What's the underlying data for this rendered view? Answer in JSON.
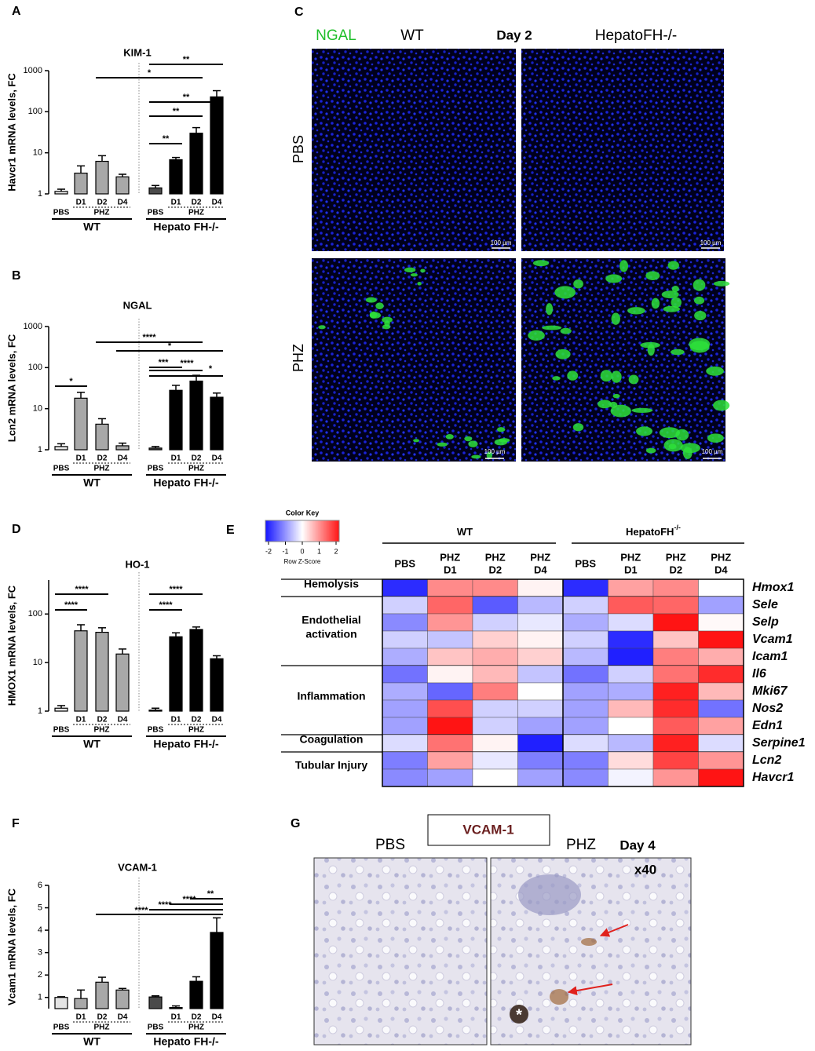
{
  "chart_data": [
    {
      "panel": "A",
      "type": "bar",
      "title": "KIM-1",
      "y_label": "Havcr1 mRNA levels, FC",
      "log_y": true,
      "ylim": [
        1,
        1000
      ],
      "yticks": [
        1,
        10,
        100,
        1000
      ],
      "categories": [
        "PBS",
        "D1",
        "D2",
        "D4",
        "PBS",
        "D1",
        "D2",
        "D4"
      ],
      "subgroup_labels": [
        "PHZ",
        "PHZ"
      ],
      "groups": [
        "WT",
        "Hepato FH-/-"
      ],
      "values": [
        1.15,
        3.2,
        6.2,
        2.6,
        1.4,
        6.8,
        30,
        230
      ],
      "errors": [
        0.15,
        1.6,
        2.3,
        0.4,
        0.2,
        0.9,
        11,
        95
      ],
      "colors": [
        "#e4e4e4",
        "#a8a8a8",
        "#a8a8a8",
        "#a8a8a8",
        "#4a4a4a",
        "#000000",
        "#000000",
        "#000000"
      ],
      "significance": [
        "**",
        "*",
        "**",
        "**",
        "**"
      ]
    },
    {
      "panel": "B",
      "type": "bar",
      "title": "NGAL",
      "y_label": "Lcn2 mRNA levels, FC",
      "log_y": true,
      "ylim": [
        1,
        1000
      ],
      "yticks": [
        1,
        10,
        100,
        1000
      ],
      "categories": [
        "PBS",
        "D1",
        "D2",
        "D4",
        "PBS",
        "D1",
        "D2",
        "D4"
      ],
      "subgroup_labels": [
        "PHZ",
        "PHZ"
      ],
      "groups": [
        "WT",
        "Hepato FH-/-"
      ],
      "values": [
        1.2,
        18,
        4.2,
        1.25,
        1.1,
        28,
        47,
        19
      ],
      "errors": [
        0.2,
        7,
        1.5,
        0.2,
        0.1,
        9,
        18,
        5
      ],
      "colors": [
        "#e4e4e4",
        "#a8a8a8",
        "#a8a8a8",
        "#a8a8a8",
        "#4a4a4a",
        "#000000",
        "#000000",
        "#000000"
      ],
      "significance": [
        "*",
        "****",
        "*",
        "***",
        "****",
        "*"
      ]
    },
    {
      "panel": "D",
      "type": "bar",
      "title": "HO-1",
      "y_label": "HMOX1 mRNA levels, FC",
      "log_y": true,
      "ylim": [
        1,
        500
      ],
      "yticks": [
        1,
        10,
        100
      ],
      "categories": [
        "PBS",
        "D1",
        "D2",
        "D4",
        "PBS",
        "D1",
        "D2",
        "D4"
      ],
      "subgroup_labels": [
        "PHZ",
        "PHZ"
      ],
      "groups": [
        "WT",
        "Hepato FH-/-"
      ],
      "values": [
        1.15,
        45,
        42,
        15,
        1.05,
        34,
        48,
        12
      ],
      "errors": [
        0.15,
        15,
        10,
        4,
        0.1,
        7,
        6,
        1.8
      ],
      "colors": [
        "#e4e4e4",
        "#a8a8a8",
        "#a8a8a8",
        "#a8a8a8",
        "#4a4a4a",
        "#000000",
        "#000000",
        "#000000"
      ],
      "significance": [
        "****",
        "****",
        "****",
        "****"
      ]
    },
    {
      "panel": "F",
      "type": "bar",
      "title": "VCAM-1",
      "y_label": "Vcam1 mRNA levels, FC",
      "log_y": false,
      "ylim": [
        0.5,
        6
      ],
      "yticks": [
        1,
        2,
        3,
        4,
        5,
        6
      ],
      "categories": [
        "PBS",
        "D1",
        "D2",
        "D4",
        "PBS",
        "D1",
        "D2",
        "D4"
      ],
      "subgroup_labels": [
        "PHZ",
        "PHZ"
      ],
      "groups": [
        "WT",
        "Hepato FH-/-"
      ],
      "values": [
        1.0,
        0.95,
        1.68,
        1.33,
        1.02,
        0.55,
        1.72,
        3.9
      ],
      "errors": [
        0.03,
        0.38,
        0.22,
        0.07,
        0.05,
        0.07,
        0.2,
        0.65
      ],
      "colors": [
        "#e4e4e4",
        "#a8a8a8",
        "#a8a8a8",
        "#a8a8a8",
        "#4a4a4a",
        "#000000",
        "#000000",
        "#000000"
      ],
      "significance": [
        "****",
        "****",
        "****",
        "**"
      ]
    },
    {
      "panel": "E",
      "type": "heatmap",
      "color_key_title": "Color Key",
      "color_key_label": "Row Z-Score",
      "zlim": [
        -2,
        2
      ],
      "zticks": [
        -2,
        -1,
        0,
        1,
        2
      ],
      "colormap": [
        "#1414ff",
        "#ffffff",
        "#ff1414"
      ],
      "groups": [
        {
          "name": "WT"
        },
        {
          "name": "HepatoFH",
          "sup": "-/-"
        }
      ],
      "columns": [
        [
          "PBS"
        ],
        [
          "PHZ",
          "D1"
        ],
        [
          "PHZ",
          "D2"
        ],
        [
          "PHZ",
          "D4"
        ],
        [
          "PBS"
        ],
        [
          "PHZ",
          "D1"
        ],
        [
          "PHZ",
          "D2"
        ],
        [
          "PHZ",
          "D4"
        ]
      ],
      "row_groups": [
        {
          "label": [
            "Hemolysis"
          ],
          "genes": [
            "Hmox1"
          ],
          "values": [
            [
              -1.8,
              1.0,
              1.0,
              0.1,
              -1.8,
              0.8,
              1.0,
              0.0
            ]
          ]
        },
        {
          "label": [
            "Endothelial",
            "activation"
          ],
          "genes": [
            "Sele",
            "Selp",
            "Vcam1",
            "Icam1"
          ],
          "values": [
            [
              -0.4,
              1.3,
              -1.4,
              -0.6,
              -0.4,
              1.4,
              1.3,
              -0.8
            ],
            [
              -1.0,
              0.9,
              -0.4,
              -0.2,
              -0.7,
              -0.3,
              2.0,
              0.05
            ],
            [
              -0.4,
              -0.5,
              0.4,
              0.1,
              -0.4,
              -1.8,
              0.5,
              2.0
            ],
            [
              -0.7,
              0.5,
              0.7,
              0.4,
              -0.6,
              -1.9,
              1.1,
              0.7
            ]
          ]
        },
        {
          "label": [
            "Inflammation"
          ],
          "genes": [
            "Il6",
            "Mki67",
            "Nos2",
            "Edn1"
          ],
          "values": [
            [
              -1.2,
              0.1,
              0.6,
              -0.5,
              -1.2,
              -0.4,
              1.2,
              1.8
            ],
            [
              -0.7,
              -1.3,
              1.1,
              0.0,
              -0.8,
              -0.7,
              1.9,
              0.6
            ],
            [
              -0.8,
              1.5,
              -0.4,
              -0.4,
              -0.8,
              0.6,
              1.8,
              -1.2
            ],
            [
              -0.8,
              2.0,
              -0.4,
              -0.8,
              -0.8,
              0.0,
              1.4,
              0.8
            ]
          ]
        },
        {
          "label": [
            "Coagulation"
          ],
          "genes": [
            "Serpine1"
          ],
          "values": [
            [
              -0.3,
              1.2,
              0.1,
              -1.9,
              -0.3,
              -0.6,
              1.9,
              -0.3
            ]
          ]
        },
        {
          "label": [
            "Tubular Injury"
          ],
          "genes": [
            "Lcn2",
            "Havcr1"
          ],
          "values": [
            [
              -1.1,
              0.8,
              -0.2,
              -1.1,
              -1.1,
              0.3,
              1.6,
              0.9
            ],
            [
              -1.0,
              -0.8,
              0.0,
              -0.8,
              -1.0,
              -0.1,
              0.9,
              2.0
            ]
          ]
        }
      ]
    }
  ],
  "panel_c": {
    "letter": "C",
    "stain": "NGAL",
    "columns": [
      "WT",
      "HepatoFH-/-"
    ],
    "day": "Day 2",
    "rows": [
      "PBS",
      "PHZ"
    ],
    "scale_bar": "100 µm"
  },
  "panel_g": {
    "letter": "G",
    "stain": "VCAM-1",
    "columns": [
      "PBS",
      "PHZ"
    ],
    "day": "Day 4",
    "magnification": "x40",
    "marker": "*"
  }
}
